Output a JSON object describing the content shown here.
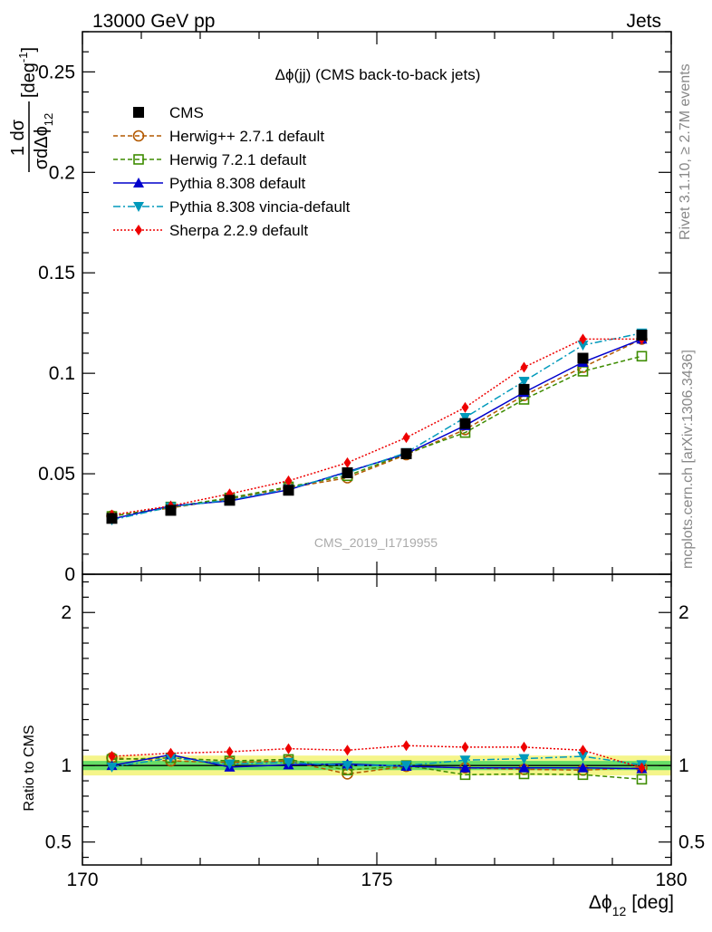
{
  "header": {
    "left": "13000 GeV pp",
    "right": "Jets"
  },
  "side_labels": {
    "rivet": "Rivet 3.1.10, ≥ 2.7M events",
    "mcplots": "mcplots.cern.ch [arXiv:1306.3436]"
  },
  "chart_data": [
    {
      "type": "line",
      "title": "Δϕ(jj) (CMS back-to-back jets)",
      "watermark": "CMS_2019_I1719955",
      "ylabel": {
        "frac_num": "1 dσ",
        "frac_den": "σdΔϕ",
        "frac_den_sub": "12",
        "unit": "[deg",
        "unit_sup": "-1",
        "unit_close": "]"
      },
      "xlim": [
        170,
        180
      ],
      "ylim": [
        0,
        0.27
      ],
      "yticks": [
        0,
        0.05,
        0.1,
        0.15,
        0.2,
        0.25
      ],
      "ytick_labels": [
        "0",
        "0.05",
        "0.1",
        "0.15",
        "0.2",
        "0.25"
      ],
      "x": [
        170.5,
        171.5,
        172.5,
        173.5,
        174.5,
        175.5,
        176.5,
        177.5,
        178.5,
        179.5
      ],
      "legend_position": "top-left",
      "series": [
        {
          "name": "CMS",
          "color": "#000000",
          "marker": "square-filled",
          "dash": "none",
          "values": [
            0.0278,
            0.0318,
            0.0368,
            0.0418,
            0.0505,
            0.06,
            0.075,
            0.092,
            0.1075,
            0.119
          ]
        },
        {
          "name": "Herwig++ 2.7.1 default",
          "color": "#b35900",
          "marker": "circle-open",
          "dash": "5,3",
          "values": [
            0.029,
            0.033,
            0.0375,
            0.043,
            0.048,
            0.0595,
            0.072,
            0.089,
            0.103,
            0.117
          ]
        },
        {
          "name": "Herwig 7.2.1 default",
          "color": "#3d8c00",
          "marker": "square-open",
          "dash": "5,3",
          "values": [
            0.0288,
            0.0335,
            0.038,
            0.0435,
            0.049,
            0.06,
            0.0705,
            0.087,
            0.101,
            0.1085
          ]
        },
        {
          "name": "Pythia 8.308 default",
          "color": "#0000cc",
          "marker": "triangle-up",
          "dash": "none",
          "values": [
            0.0275,
            0.034,
            0.0365,
            0.042,
            0.051,
            0.06,
            0.074,
            0.0905,
            0.1055,
            0.117
          ]
        },
        {
          "name": "Pythia 8.308 vincia-default",
          "color": "#0099bb",
          "marker": "triangle-down",
          "dash": "8,3,2,3",
          "values": [
            0.027,
            0.0335,
            0.037,
            0.0425,
            0.0505,
            0.0605,
            0.078,
            0.096,
            0.114,
            0.12
          ]
        },
        {
          "name": "Sherpa 2.2.9 default",
          "color": "#ee0000",
          "marker": "diamond",
          "dash": "2,2",
          "values": [
            0.0295,
            0.034,
            0.04,
            0.0465,
            0.0555,
            0.068,
            0.083,
            0.103,
            0.117,
            0.117
          ]
        }
      ]
    },
    {
      "type": "line",
      "ylabel": "Ratio to CMS",
      "xlabel": "Δϕ",
      "xlabel_sub": "12",
      "xlabel_unit": "[deg]",
      "xlim": [
        170,
        180
      ],
      "xticks": [
        170,
        175,
        180
      ],
      "xtick_labels": [
        "170",
        "175",
        "180"
      ],
      "ylim": [
        0.35,
        2.25
      ],
      "yticks": [
        0.5,
        1,
        2
      ],
      "ytick_labels": [
        "0.5",
        "1",
        "2"
      ],
      "x": [
        170.5,
        171.5,
        172.5,
        173.5,
        174.5,
        175.5,
        176.5,
        177.5,
        178.5,
        179.5
      ],
      "band_inner": {
        "color": "#66dd66",
        "half_width": 0.03
      },
      "band_outer": {
        "color": "#f5f58a",
        "half_width": 0.065
      },
      "series": [
        {
          "name": "Herwig++ 2.7.1 default",
          "color": "#b35900",
          "marker": "circle-open",
          "dash": "5,3",
          "values": [
            1.05,
            1.03,
            1.02,
            1.03,
            0.945,
            0.995,
            0.985,
            0.975,
            0.97,
            0.985
          ]
        },
        {
          "name": "Herwig 7.2.1 default",
          "color": "#3d8c00",
          "marker": "square-open",
          "dash": "5,3",
          "values": [
            1.04,
            1.05,
            1.03,
            1.04,
            0.97,
            1.0,
            0.94,
            0.945,
            0.94,
            0.91
          ]
        },
        {
          "name": "Pythia 8.308 default",
          "color": "#0000cc",
          "marker": "triangle-up",
          "dash": "none",
          "values": [
            1.0,
            1.07,
            0.99,
            1.005,
            1.01,
            0.995,
            0.985,
            0.985,
            0.985,
            0.98
          ]
        },
        {
          "name": "Pythia 8.308 vincia-default",
          "color": "#0099bb",
          "marker": "triangle-down",
          "dash": "8,3,2,3",
          "values": [
            0.99,
            1.05,
            1.01,
            1.02,
            1.0,
            1.0,
            1.035,
            1.045,
            1.06,
            1.005
          ]
        },
        {
          "name": "Sherpa 2.2.9 default",
          "color": "#ee0000",
          "marker": "diamond",
          "dash": "2,2",
          "values": [
            1.06,
            1.08,
            1.09,
            1.11,
            1.1,
            1.13,
            1.12,
            1.12,
            1.1,
            0.985
          ]
        }
      ]
    }
  ]
}
